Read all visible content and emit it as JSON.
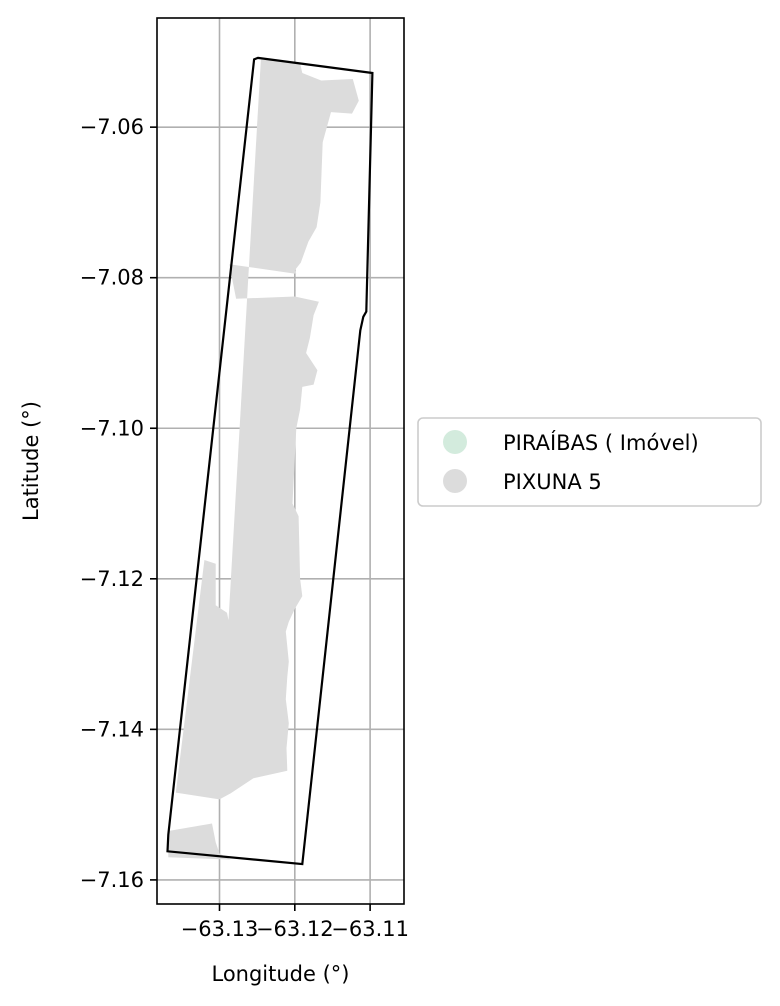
{
  "chart_data": {
    "type": "map",
    "xlabel": "Longitude (°)",
    "ylabel": "Latitude (°)",
    "xlim": [
      -63.1383,
      -63.1055
    ],
    "ylim": [
      -7.1632,
      -7.0455
    ],
    "x_ticks": [
      -63.13,
      -63.12,
      -63.11
    ],
    "x_tick_labels": [
      "−63.13",
      "−63.12",
      "−63.11"
    ],
    "y_ticks": [
      -7.06,
      -7.08,
      -7.1,
      -7.12,
      -7.14,
      -7.16
    ],
    "y_tick_labels": [
      "−7.06",
      "−7.08",
      "−7.10",
      "−7.12",
      "−7.14",
      "−7.16"
    ],
    "grid": true,
    "legend_position": "outside-right",
    "legend": [
      {
        "label": "PIRAÍBAS ( Imóvel)",
        "color": "#d3ebdd"
      },
      {
        "label": "PIXUNA 5",
        "color": "#dcdcdc"
      }
    ],
    "boundary_outline": {
      "color": "#000000",
      "coords": [
        [
          -63.1249,
          -7.0508
        ],
        [
          -63.1097,
          -7.0528
        ],
        [
          -63.1105,
          -7.0845
        ],
        [
          -63.1109,
          -7.0852
        ],
        [
          -63.1113,
          -7.087
        ],
        [
          -63.119,
          -7.1579
        ],
        [
          -63.1369,
          -7.1562
        ],
        [
          -63.1368,
          -7.154
        ],
        [
          -63.1254,
          -7.051
        ]
      ]
    },
    "pixuna_5_area": {
      "color": "#dcdcdc",
      "coords": [
        [
          -63.1247,
          -7.051
        ],
        [
          -63.1193,
          -7.0515
        ],
        [
          -63.119,
          -7.0528
        ],
        [
          -63.1165,
          -7.0538
        ],
        [
          -63.1123,
          -7.0536
        ],
        [
          -63.1115,
          -7.0565
        ],
        [
          -63.1124,
          -7.0582
        ],
        [
          -63.1152,
          -7.058
        ],
        [
          -63.1163,
          -7.062
        ],
        [
          -63.1166,
          -7.07
        ],
        [
          -63.1171,
          -7.0733
        ],
        [
          -63.1182,
          -7.0752
        ],
        [
          -63.1192,
          -7.078
        ],
        [
          -63.12,
          -7.079
        ],
        [
          -63.1198,
          -7.0795
        ],
        [
          -63.1287,
          -7.0782
        ],
        [
          -63.1278,
          -7.0828
        ],
        [
          -63.12,
          -7.0825
        ],
        [
          -63.1168,
          -7.0832
        ],
        [
          -63.1175,
          -7.085
        ],
        [
          -63.118,
          -7.088
        ],
        [
          -63.1185,
          -7.09
        ],
        [
          -63.117,
          -7.0923
        ],
        [
          -63.1175,
          -7.0942
        ],
        [
          -63.119,
          -7.0945
        ],
        [
          -63.1193,
          -7.0975
        ],
        [
          -63.1198,
          -7.1
        ],
        [
          -63.1203,
          -7.11
        ],
        [
          -63.1195,
          -7.1117
        ],
        [
          -63.1194,
          -7.1155
        ],
        [
          -63.1193,
          -7.12
        ],
        [
          -63.119,
          -7.1223
        ],
        [
          -63.12,
          -7.124
        ],
        [
          -63.1208,
          -7.1257
        ],
        [
          -63.1212,
          -7.127
        ],
        [
          -63.1208,
          -7.131
        ],
        [
          -63.121,
          -7.133
        ],
        [
          -63.1212,
          -7.136
        ],
        [
          -63.1208,
          -7.1392
        ],
        [
          -63.1211,
          -7.1425
        ],
        [
          -63.121,
          -7.1455
        ],
        [
          -63.1255,
          -7.1465
        ],
        [
          -63.1285,
          -7.1485
        ],
        [
          -63.13,
          -7.1493
        ],
        [
          -63.1358,
          -7.1484
        ],
        [
          -63.132,
          -7.1175
        ],
        [
          -63.1305,
          -7.118
        ],
        [
          -63.1305,
          -7.1235
        ],
        [
          -63.129,
          -7.1245
        ],
        [
          -63.1288,
          -7.1255
        ],
        [
          -63.1245,
          -7.051
        ]
      ]
    },
    "pixuna_5_south_area": {
      "color": "#dcdcdc",
      "coords": [
        [
          -63.1368,
          -7.1535
        ],
        [
          -63.131,
          -7.1525
        ],
        [
          -63.1305,
          -7.155
        ],
        [
          -63.13,
          -7.1565
        ],
        [
          -63.1285,
          -7.1573
        ],
        [
          -63.1368,
          -7.157
        ]
      ]
    }
  }
}
